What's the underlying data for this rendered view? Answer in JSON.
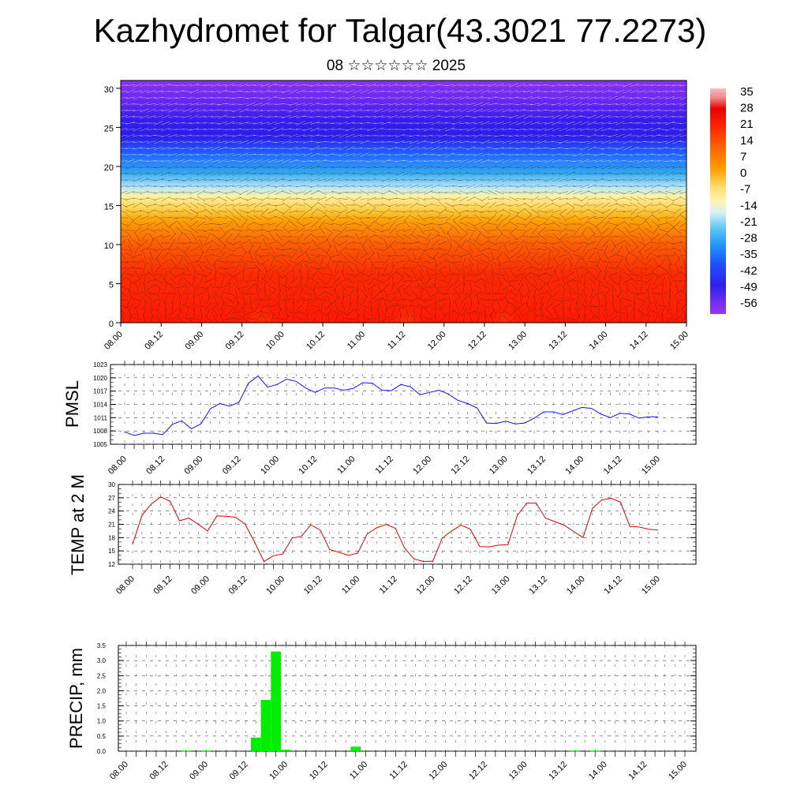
{
  "header": {
    "title": "Kazhydromet for Talgar(43.3021 77.2273)",
    "subtitle": "08 ☆☆☆☆☆☆ 2025"
  },
  "chart_data": [
    {
      "type": "heatmap",
      "title": "Kazhydromet for Talgar(43.3021 77.2273)",
      "subtitle": "08 ☆☆☆☆☆☆ 2025",
      "x_tick_labels": [
        "08.00",
        "08.12",
        "09.00",
        "09.12",
        "10.00",
        "10.12",
        "11.00",
        "11.12",
        "12.00",
        "12.12",
        "13.00",
        "13.12",
        "14.00",
        "14.12",
        "15.00"
      ],
      "y_tick_labels": [
        "0",
        "5",
        "10",
        "15",
        "20",
        "25",
        "30"
      ],
      "ylim": [
        0,
        31
      ],
      "colorbar": {
        "labels": [
          "35",
          "28",
          "21",
          "14",
          "7",
          "0",
          "-7",
          "-14",
          "-21",
          "-28",
          "-35",
          "-42",
          "-49",
          "-56"
        ],
        "colors_top_to_bottom": [
          "#f4b6b6",
          "#e80000",
          "#ff3000",
          "#ff6a00",
          "#ff9600",
          "#ffc000",
          "#ffe98a",
          "#e0f0f5",
          "#6ad0f0",
          "#20a0ff",
          "#2060ff",
          "#2030f0",
          "#4c20e8",
          "#8a2df2"
        ]
      },
      "overlay": "wind barbs"
    },
    {
      "type": "line",
      "ylabel": "PMSL",
      "ylim": [
        1005,
        1023
      ],
      "y_ticks": [
        1005,
        1008,
        1011,
        1014,
        1017,
        1020,
        1023
      ],
      "x_tick_labels": [
        "08.00",
        "08.12",
        "09.00",
        "09.12",
        "10.00",
        "10.12",
        "11.00",
        "11.12",
        "12.00",
        "12.12",
        "13.00",
        "13.12",
        "14.00",
        "14.12",
        "15.00"
      ],
      "color": "#1010ff",
      "x_hours": [
        0,
        3,
        6,
        9,
        12,
        15,
        18,
        21,
        24,
        27,
        30,
        33,
        36,
        39,
        42,
        45,
        48,
        51,
        54,
        57,
        60,
        63,
        66,
        69,
        72,
        75,
        78,
        81,
        84,
        87,
        90,
        93,
        96,
        99,
        102,
        105,
        108,
        111,
        114,
        117,
        120,
        123,
        126,
        129,
        132,
        135,
        138,
        141,
        144,
        147,
        150,
        153,
        156,
        159,
        162,
        165,
        168
      ],
      "values": [
        1007.8,
        1007.0,
        1007.5,
        1007.5,
        1007.2,
        1009.5,
        1010.3,
        1008.5,
        1009.6,
        1013.0,
        1014.2,
        1013.6,
        1014.5,
        1018.8,
        1020.4,
        1017.9,
        1018.5,
        1019.7,
        1019.2,
        1017.7,
        1016.7,
        1017.7,
        1017.7,
        1017.2,
        1017.6,
        1018.9,
        1018.8,
        1017.2,
        1017.1,
        1018.5,
        1018.0,
        1016.2,
        1016.7,
        1017.2,
        1016.3,
        1014.9,
        1014.2,
        1013.2,
        1009.8,
        1009.7,
        1010.2,
        1009.6,
        1009.8,
        1010.9,
        1012.3,
        1012.3,
        1011.7,
        1012.5,
        1013.3,
        1013.1,
        1011.8,
        1011.0,
        1012.0,
        1011.8,
        1010.9,
        1011.2,
        1011.2
      ]
    },
    {
      "type": "line",
      "ylabel": "TEMP at 2 M",
      "ylim": [
        12,
        30
      ],
      "y_ticks": [
        12,
        15,
        18,
        21,
        24,
        27,
        30
      ],
      "x_tick_labels": [
        "08.00",
        "08.12",
        "09.00",
        "09.12",
        "10.00",
        "10.12",
        "11.00",
        "11.12",
        "12.00",
        "12.12",
        "13.00",
        "13.12",
        "14.00",
        "14.12",
        "15.00"
      ],
      "color": "#e00000",
      "x_hours": [
        0,
        3,
        6,
        9,
        12,
        15,
        18,
        21,
        24,
        27,
        30,
        33,
        36,
        39,
        42,
        45,
        48,
        51,
        54,
        57,
        60,
        63,
        66,
        69,
        72,
        75,
        78,
        81,
        84,
        87,
        90,
        93,
        96,
        99,
        102,
        105,
        108,
        111,
        114,
        117,
        120,
        123,
        126,
        129,
        132,
        135,
        138,
        141,
        144,
        147,
        150,
        153,
        156,
        159,
        162,
        165,
        168
      ],
      "values": [
        16.5,
        23.0,
        25.6,
        27.2,
        26.2,
        21.8,
        22.4,
        21.0,
        19.5,
        22.9,
        22.8,
        22.6,
        21.0,
        17.0,
        12.6,
        13.9,
        14.3,
        17.9,
        18.3,
        20.9,
        19.7,
        15.3,
        14.7,
        14.0,
        14.5,
        18.8,
        20.2,
        21.0,
        20.1,
        15.6,
        13.2,
        12.6,
        12.7,
        17.9,
        19.5,
        20.8,
        19.9,
        16.0,
        15.9,
        16.3,
        16.4,
        23.0,
        25.8,
        25.8,
        22.4,
        21.6,
        20.8,
        19.4,
        18.0,
        24.6,
        26.5,
        26.9,
        26.0,
        20.5,
        20.4,
        19.9,
        19.7
      ]
    },
    {
      "type": "bar",
      "ylabel": "PRECIP, mm",
      "ylim": [
        0,
        3.5
      ],
      "y_tick_labels": [
        "0.0",
        "0.5",
        "1.0",
        "1.5",
        "2.0",
        "2.5",
        "3.0",
        "3.5"
      ],
      "x_tick_labels": [
        "08.00",
        "08.12",
        "09.00",
        "09.12",
        "10.00",
        "10.12",
        "11.00",
        "11.12",
        "12.00",
        "12.12",
        "13.00",
        "13.12",
        "14.00",
        "14.12",
        "15.00"
      ],
      "color": "#00ee00",
      "bars": [
        {
          "x_hours": 18,
          "value": 0.02
        },
        {
          "x_hours": 24,
          "value": 0.02
        },
        {
          "x_hours": 39,
          "value": 0.45
        },
        {
          "x_hours": 42,
          "value": 1.7
        },
        {
          "x_hours": 45,
          "value": 3.3
        },
        {
          "x_hours": 48,
          "value": 0.05
        },
        {
          "x_hours": 69,
          "value": 0.15
        },
        {
          "x_hours": 135,
          "value": 0.02
        },
        {
          "x_hours": 141,
          "value": 0.02
        }
      ]
    }
  ]
}
